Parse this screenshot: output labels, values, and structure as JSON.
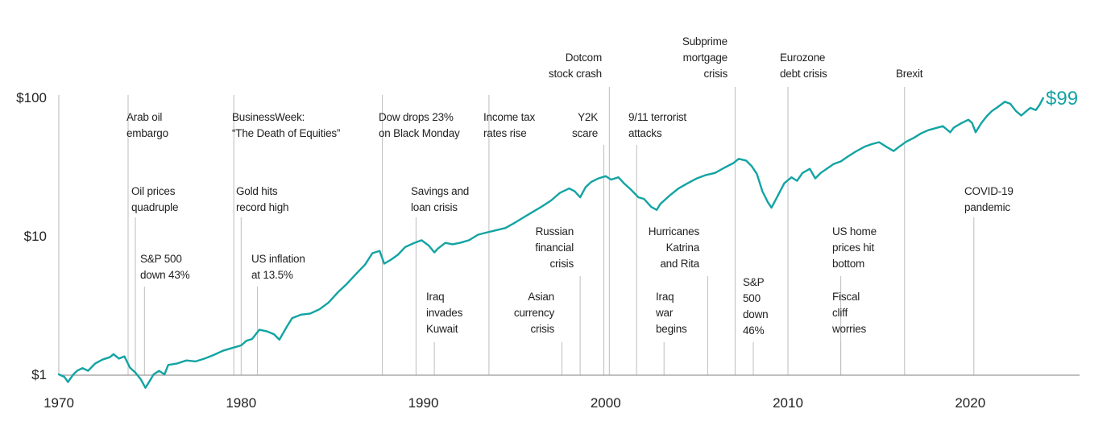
{
  "chart_data": {
    "type": "line",
    "title": "",
    "xlabel": "",
    "ylabel": "",
    "y_scale": "log",
    "xlim": [
      1970,
      2026
    ],
    "ylim": [
      1,
      100
    ],
    "grid": false,
    "line_color": "#13A3A3",
    "x_ticks": [
      {
        "value": 1970,
        "label": "1970"
      },
      {
        "value": 1980,
        "label": "1980"
      },
      {
        "value": 1990,
        "label": "1990"
      },
      {
        "value": 2000,
        "label": "2000"
      },
      {
        "value": 2010,
        "label": "2010"
      },
      {
        "value": 2020,
        "label": "2020"
      }
    ],
    "y_ticks": [
      {
        "value": 1,
        "label": "$1"
      },
      {
        "value": 10,
        "label": "$10"
      },
      {
        "value": 100,
        "label": "$100"
      }
    ],
    "end_label": "$99",
    "series": [
      {
        "x": [
          1970.0,
          1970.3,
          1970.5,
          1970.8,
          1971.0,
          1971.3,
          1971.6,
          1972.0,
          1972.4,
          1972.8,
          1973.0,
          1973.3,
          1973.6,
          1973.9,
          1974.2,
          1974.5,
          1974.75,
          1974.9,
          1975.2,
          1975.5,
          1975.8,
          1976.0,
          1976.5,
          1977.0,
          1977.5,
          1978.0,
          1978.5,
          1979.0,
          1979.5,
          1980.0,
          1980.3,
          1980.6,
          1981.0,
          1981.4,
          1981.8,
          1982.1,
          1982.5,
          1982.8,
          1983.3,
          1983.8,
          1984.3,
          1984.8,
          1985.3,
          1985.8,
          1986.3,
          1986.8,
          1987.2,
          1987.6,
          1987.85,
          1988.2,
          1988.6,
          1989.0,
          1989.5,
          1989.9,
          1990.3,
          1990.6,
          1990.8,
          1991.2,
          1991.6,
          1992.0,
          1992.5,
          1993.0,
          1993.5,
          1994.0,
          1994.5,
          1995.0,
          1995.5,
          1996.0,
          1996.5,
          1997.0,
          1997.5,
          1998.0,
          1998.3,
          1998.6,
          1998.9,
          1999.2,
          1999.6,
          2000.0,
          2000.3,
          2000.7,
          2001.0,
          2001.4,
          2001.8,
          2002.1,
          2002.5,
          2002.8,
          2003.0,
          2003.5,
          2004.0,
          2004.5,
          2005.0,
          2005.5,
          2006.0,
          2006.5,
          2007.0,
          2007.3,
          2007.7,
          2008.0,
          2008.3,
          2008.6,
          2008.9,
          2009.1,
          2009.4,
          2009.8,
          2010.2,
          2010.5,
          2010.8,
          2011.2,
          2011.5,
          2011.8,
          2012.2,
          2012.5,
          2012.9,
          2013.3,
          2013.7,
          2014.2,
          2014.6,
          2015.0,
          2015.4,
          2015.8,
          2016.1,
          2016.5,
          2016.9,
          2017.3,
          2017.7,
          2018.1,
          2018.5,
          2018.9,
          2019.1,
          2019.5,
          2019.9,
          2020.1,
          2020.3,
          2020.6,
          2020.9,
          2021.2,
          2021.5,
          2021.9,
          2022.2,
          2022.5,
          2022.8,
          2023.0,
          2023.3,
          2023.6,
          2023.8,
          2024.0
        ],
        "y": [
          1.0,
          0.96,
          0.88,
          1.0,
          1.06,
          1.11,
          1.06,
          1.2,
          1.28,
          1.33,
          1.4,
          1.3,
          1.35,
          1.12,
          1.03,
          0.92,
          0.8,
          0.86,
          1.0,
          1.06,
          1.0,
          1.17,
          1.2,
          1.26,
          1.24,
          1.3,
          1.38,
          1.48,
          1.55,
          1.62,
          1.75,
          1.8,
          2.1,
          2.05,
          1.95,
          1.78,
          2.2,
          2.55,
          2.7,
          2.75,
          2.95,
          3.3,
          3.9,
          4.5,
          5.3,
          6.2,
          7.5,
          7.8,
          6.3,
          6.7,
          7.3,
          8.3,
          8.9,
          9.3,
          8.5,
          7.6,
          8.1,
          8.9,
          8.7,
          8.9,
          9.3,
          10.2,
          10.6,
          11.0,
          11.4,
          12.4,
          13.6,
          14.9,
          16.3,
          18.0,
          20.5,
          22.0,
          21.0,
          19.0,
          22.5,
          24.5,
          26.0,
          27.0,
          25.5,
          26.5,
          24.0,
          21.5,
          19.0,
          18.5,
          16.2,
          15.4,
          17.0,
          19.5,
          22.0,
          24.0,
          26.0,
          27.5,
          28.5,
          31.0,
          33.5,
          36.0,
          35.0,
          32.0,
          28.0,
          21.0,
          17.5,
          16.0,
          19.0,
          24.0,
          26.5,
          25.0,
          28.5,
          30.5,
          26.0,
          28.5,
          31.0,
          33.0,
          34.5,
          37.5,
          40.5,
          44.0,
          46.0,
          47.5,
          44.0,
          41.0,
          44.0,
          48.0,
          51.0,
          55.0,
          58.0,
          60.0,
          62.0,
          56.0,
          60.5,
          65.0,
          69.0,
          65.5,
          56.0,
          65.0,
          73.0,
          80.0,
          85.0,
          93.0,
          90.0,
          80.0,
          74.0,
          78.0,
          84.0,
          81.0,
          88.0,
          99.0
        ]
      }
    ],
    "annotations": [
      {
        "year": 1973.8,
        "text_lines": [
          "Arab oil",
          "embargo"
        ]
      },
      {
        "year": 1974.2,
        "text_lines": [
          "Oil prices",
          "quadruple"
        ]
      },
      {
        "year": 1974.7,
        "text_lines": [
          "S&P 500",
          "down 43%"
        ]
      },
      {
        "year": 1979.6,
        "text_lines": [
          "BusinessWeek:",
          "“The Death  of Equities”"
        ]
      },
      {
        "year": 1980.0,
        "text_lines": [
          "Gold hits",
          "record high"
        ]
      },
      {
        "year": 1980.9,
        "text_lines": [
          "US inflation",
          "at 13.5%"
        ]
      },
      {
        "year": 1987.75,
        "text_lines": [
          "Dow drops 23%",
          "on Black Monday"
        ]
      },
      {
        "year": 1989.6,
        "text_lines": [
          "Savings and",
          "loan crisis"
        ]
      },
      {
        "year": 1990.6,
        "text_lines": [
          "Iraq",
          "invades",
          "Kuwait"
        ]
      },
      {
        "year": 1993.6,
        "text_lines": [
          "Income tax",
          "rates rise"
        ]
      },
      {
        "year": 1997.6,
        "text_lines": [
          "Asian",
          "currency",
          "crisis"
        ]
      },
      {
        "year": 1998.6,
        "text_lines": [
          "Russian",
          "financial",
          "crisis"
        ]
      },
      {
        "year": 1999.9,
        "text_lines": [
          "Y2K",
          "scare"
        ]
      },
      {
        "year": 2000.2,
        "text_lines": [
          "Dotcom",
          "stock crash"
        ]
      },
      {
        "year": 2001.7,
        "text_lines": [
          "9/11 terrorist",
          "attacks"
        ]
      },
      {
        "year": 2003.2,
        "text_lines": [
          "Iraq",
          "war",
          "begins"
        ]
      },
      {
        "year": 2005.6,
        "text_lines": [
          "Hurricanes",
          "Katrina",
          "and Rita"
        ]
      },
      {
        "year": 2007.1,
        "text_lines": [
          "Subprime",
          "mortgage",
          "crisis"
        ]
      },
      {
        "year": 2008.1,
        "text_lines": [
          "S&P",
          "500",
          "down",
          "46%"
        ]
      },
      {
        "year": 2010.0,
        "text_lines": [
          "Eurozone",
          "debt crisis"
        ]
      },
      {
        "year": 2012.9,
        "text_lines": [
          "US home",
          "prices hit",
          "bottom"
        ]
      },
      {
        "year": 2012.9,
        "text_lines": [
          "Fiscal",
          "cliff",
          "worries"
        ]
      },
      {
        "year": 2016.4,
        "text_lines": [
          "Brexit"
        ]
      },
      {
        "year": 2020.2,
        "text_lines": [
          "COVID-19",
          "pandemic"
        ]
      }
    ]
  }
}
